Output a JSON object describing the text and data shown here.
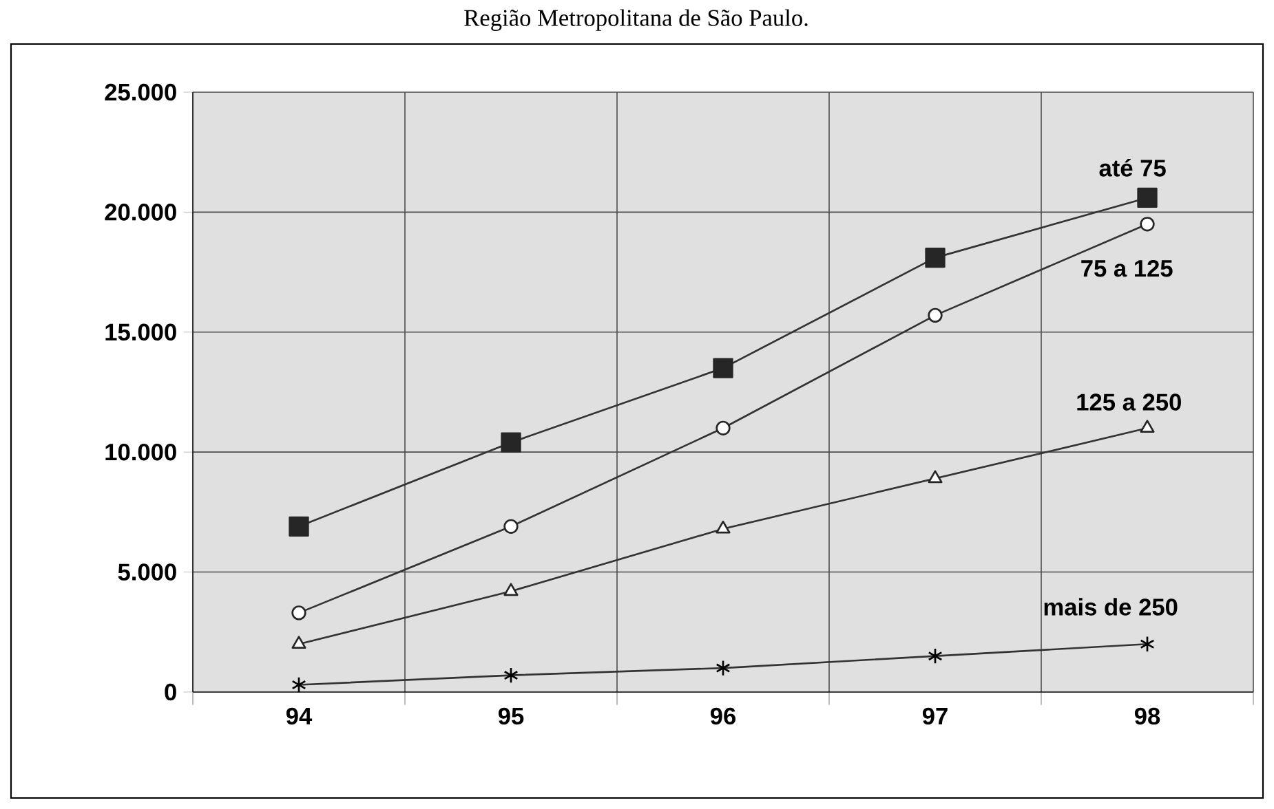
{
  "chart_data": {
    "type": "line",
    "title": "Região Metropolitana de São Paulo.",
    "categories": [
      "94",
      "95",
      "96",
      "97",
      "98"
    ],
    "series": [
      {
        "name": "até 75",
        "color": "#333333",
        "marker": "square",
        "values": [
          6900,
          10400,
          13500,
          18100,
          20600
        ]
      },
      {
        "name": "75 a 125",
        "color": "#333333",
        "marker": "circle",
        "values": [
          3300,
          6900,
          11000,
          15700,
          19500
        ]
      },
      {
        "name": "125 a 250",
        "color": "#333333",
        "marker": "triangle",
        "values": [
          2000,
          4200,
          6800,
          8900,
          11000
        ]
      },
      {
        "name": "mais de 250",
        "color": "#333333",
        "marker": "cross",
        "values": [
          300,
          700,
          1000,
          1500,
          2000
        ]
      }
    ],
    "ylim": [
      0,
      25000
    ],
    "yticks": [
      {
        "value": 0,
        "label": "0"
      },
      {
        "value": 5000,
        "label": "5.000"
      },
      {
        "value": 10000,
        "label": "10.000"
      },
      {
        "value": 15000,
        "label": "15.000"
      },
      {
        "value": 20000,
        "label": "20.000"
      },
      {
        "value": 25000,
        "label": "25.000"
      }
    ],
    "grid": true,
    "legend": false
  }
}
